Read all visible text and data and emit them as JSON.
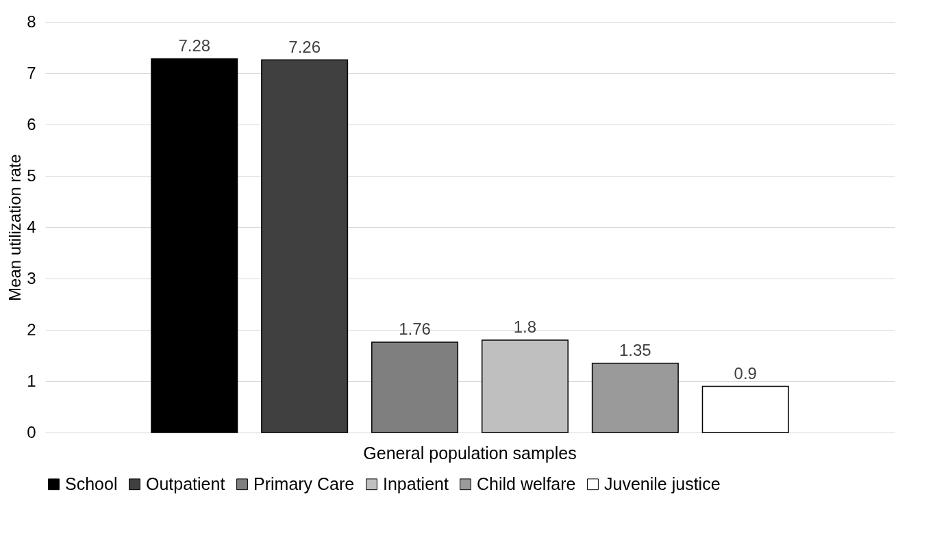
{
  "chart_data": {
    "type": "bar",
    "ylabel": "Mean utilization rate",
    "categories": [
      "General population samples"
    ],
    "series": [
      {
        "name": "School",
        "color": "#000000",
        "values": [
          7.28
        ]
      },
      {
        "name": "Outpatient",
        "color": "#404040",
        "values": [
          7.26
        ]
      },
      {
        "name": "Primary Care",
        "color": "#7f7f7f",
        "values": [
          1.76
        ]
      },
      {
        "name": "Inpatient",
        "color": "#bfbfbf",
        "values": [
          1.8
        ]
      },
      {
        "name": "Child welfare",
        "color": "#9a9a9a",
        "values": [
          1.35
        ]
      },
      {
        "name": "Juvenile justice",
        "color": "#ffffff",
        "values": [
          0.9
        ]
      }
    ],
    "ylim": [
      0,
      8
    ],
    "yticks": [
      0,
      1,
      2,
      3,
      4,
      5,
      6,
      7,
      8
    ],
    "grid": "y",
    "legend": "bottom",
    "data_labels": true
  }
}
